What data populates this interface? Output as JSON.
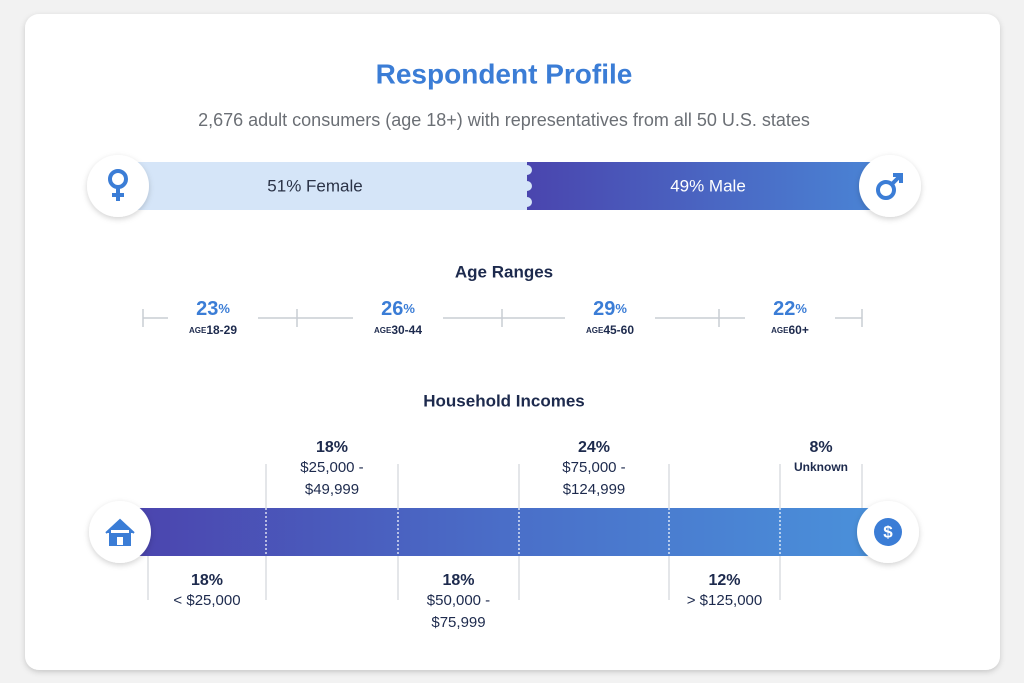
{
  "header": {
    "title": "Respondent Profile",
    "subtitle": "2,676 adult consumers (age 18+) with representatives from all 50 U.S. states"
  },
  "gender": {
    "female": "51% Female",
    "male": "49% Male"
  },
  "age_ranges": {
    "title": "Age Ranges",
    "items": [
      {
        "value": "23",
        "unit": "%",
        "prefix": "AGE",
        "range": "18-29"
      },
      {
        "value": "26",
        "unit": "%",
        "prefix": "AGE",
        "range": "30-44"
      },
      {
        "value": "29",
        "unit": "%",
        "prefix": "AGE",
        "range": "45-60"
      },
      {
        "value": "22",
        "unit": "%",
        "prefix": "AGE",
        "range": "60+"
      }
    ]
  },
  "household_incomes": {
    "title": "Household Incomes",
    "items": [
      {
        "percent": "18%",
        "lines": [
          "< $25,000"
        ]
      },
      {
        "percent": "18%",
        "lines": [
          "$25,000 -",
          "$49,999"
        ]
      },
      {
        "percent": "18%",
        "lines": [
          "$50,000 -",
          "$75,999"
        ]
      },
      {
        "percent": "24%",
        "lines": [
          "$75,000 -",
          "$124,999"
        ]
      },
      {
        "percent": "12%",
        "lines": [
          "> $125,000"
        ]
      },
      {
        "percent": "8%",
        "lines": [
          "Unknown"
        ]
      }
    ]
  }
}
